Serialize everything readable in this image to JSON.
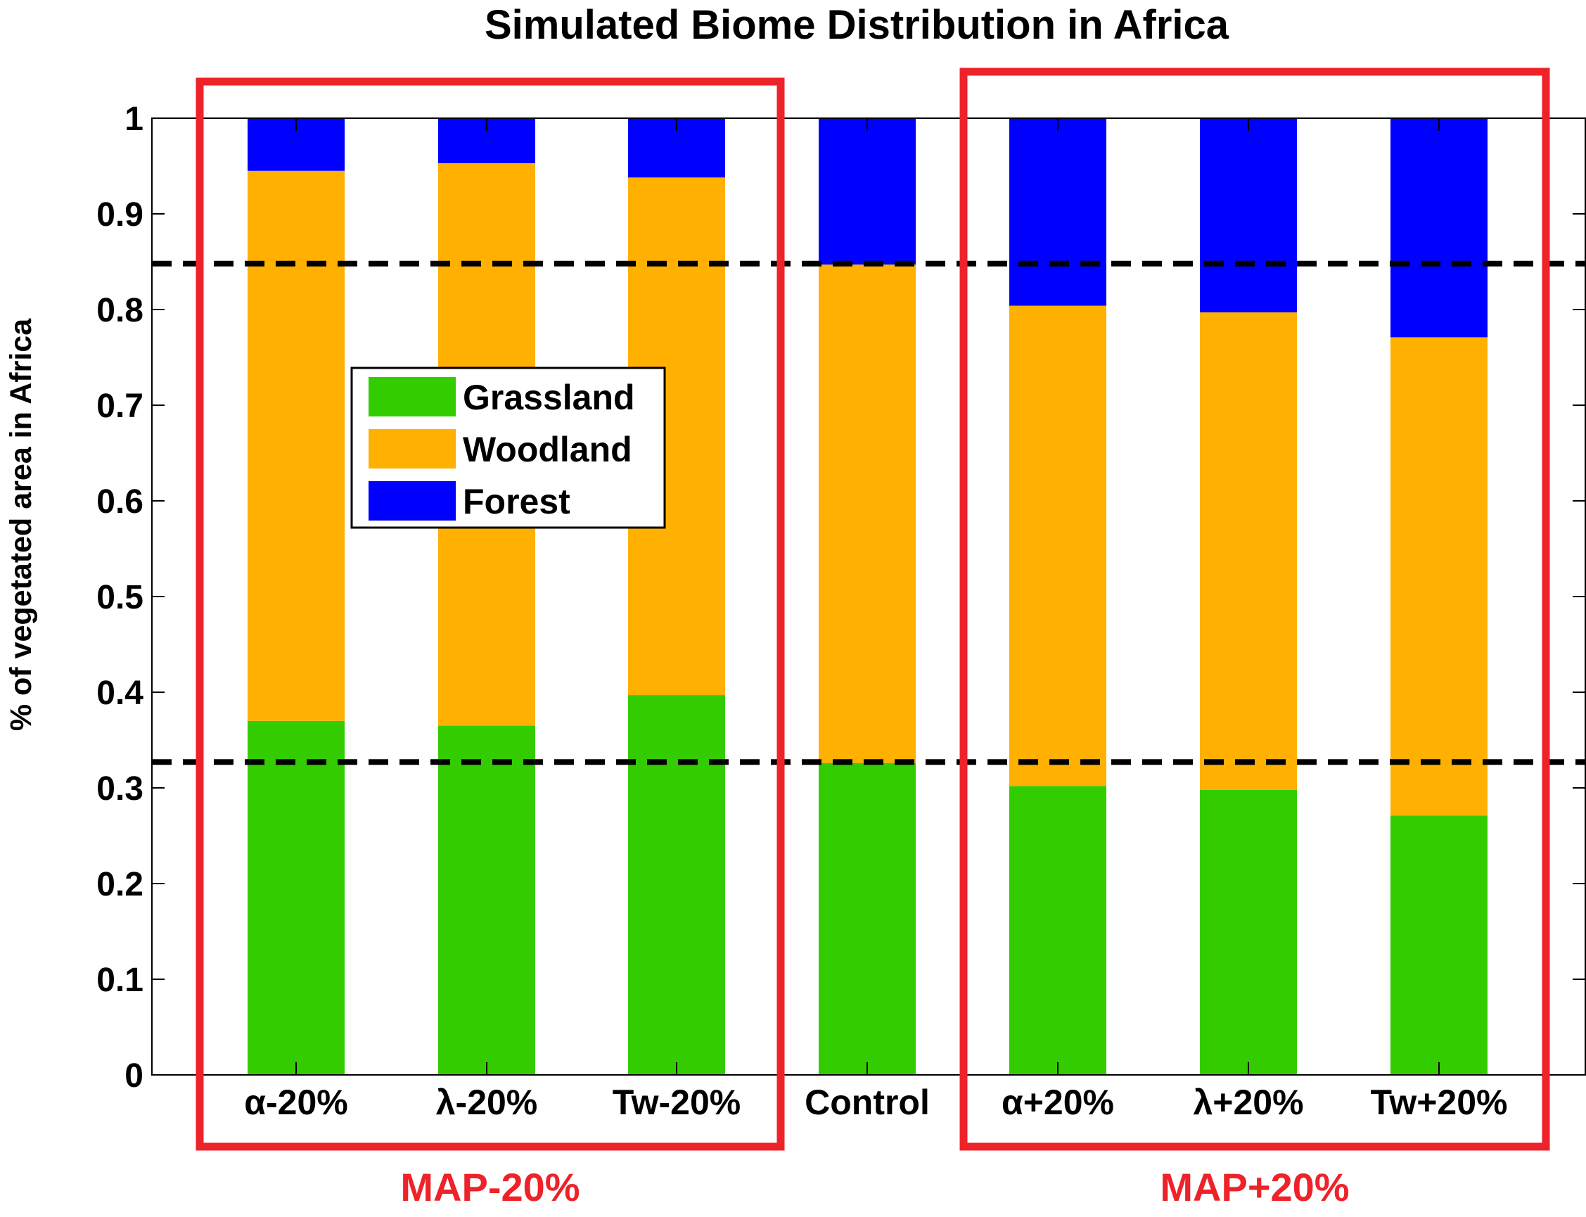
{
  "chart_data": {
    "type": "bar",
    "stacked": true,
    "title": "Simulated Biome Distribution in Africa",
    "xlabel": "",
    "ylabel": "% of vegetated area in Africa",
    "ylim": [
      0,
      1
    ],
    "yticks": [
      "0",
      "0.1",
      "0.2",
      "0.3",
      "0.4",
      "0.5",
      "0.6",
      "0.7",
      "0.8",
      "0.9",
      "1"
    ],
    "ytick_values": [
      0,
      0.1,
      0.2,
      0.3,
      0.4,
      0.5,
      0.6,
      0.7,
      0.8,
      0.9,
      1
    ],
    "grid": false,
    "categories": [
      "α-20%",
      "λ-20%",
      "Tw-20%",
      "Control",
      "α+20%",
      "λ+20%",
      "Tw+20%"
    ],
    "series": [
      {
        "name": "Grassland",
        "color": "#33cc00",
        "values": [
          0.37,
          0.365,
          0.397,
          0.326,
          0.302,
          0.298,
          0.271
        ]
      },
      {
        "name": "Woodland",
        "color": "#ffb000",
        "values": [
          0.575,
          0.588,
          0.541,
          0.521,
          0.502,
          0.499,
          0.5
        ]
      },
      {
        "name": "Forest",
        "color": "#0000ff",
        "values": [
          0.055,
          0.047,
          0.062,
          0.153,
          0.196,
          0.203,
          0.229
        ]
      }
    ],
    "reference_lines": [
      {
        "name": "upper-reference",
        "y": 0.848,
        "style": "dashed",
        "color": "#000000"
      },
      {
        "name": "lower-reference",
        "y": 0.327,
        "style": "dashed",
        "color": "#000000"
      }
    ],
    "legend": {
      "position": "upper-left",
      "entries": [
        "Grassland",
        "Woodland",
        "Forest"
      ]
    },
    "groups": [
      {
        "label": "MAP-20%",
        "categories": [
          "α-20%",
          "λ-20%",
          "Tw-20%"
        ],
        "color": "#ee2229"
      },
      {
        "label": "MAP+20%",
        "categories": [
          "α+20%",
          "λ+20%",
          "Tw+20%"
        ],
        "color": "#ee2229"
      }
    ]
  }
}
